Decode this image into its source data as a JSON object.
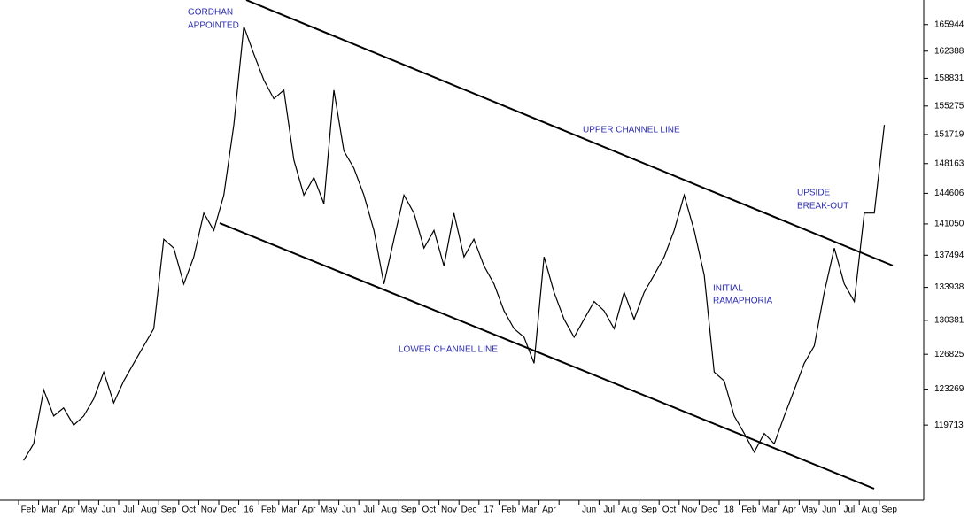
{
  "chart_data": {
    "type": "line",
    "log": true,
    "categories": [
      "Feb",
      null,
      "Mar",
      null,
      "Apr",
      null,
      "May",
      null,
      "Jun",
      null,
      "Jul",
      null,
      "Aug",
      null,
      "Sep",
      null,
      "Oct",
      null,
      "Nov",
      null,
      "Dec",
      null,
      "16",
      null,
      "Feb",
      null,
      "Mar",
      null,
      "Apr",
      null,
      "May",
      null,
      "Jun",
      null,
      "Jul",
      null,
      "Aug",
      null,
      "Sep",
      null,
      "Oct",
      null,
      "Nov",
      null,
      "Dec",
      null,
      "17",
      null,
      "Feb",
      null,
      "Mar",
      null,
      "Apr",
      null,
      null,
      null,
      "Jun",
      null,
      "Jul",
      null,
      "Aug",
      null,
      "Sep",
      null,
      "Oct",
      null,
      "Nov",
      null,
      "Dec",
      null,
      "18",
      null,
      "Feb",
      null,
      "Mar",
      null,
      "Apr",
      null,
      "May",
      null,
      "Jun",
      null,
      "Jul",
      null,
      "Aug",
      null,
      "Sep",
      null
    ],
    "series": [
      {
        "color": "#000000",
        "values": [
          116300,
          117900,
          123200,
          120600,
          121400,
          119700,
          120600,
          122300,
          125000,
          121900,
          124100,
          125900,
          127700,
          129500,
          139300,
          138300,
          134300,
          137300,
          142300,
          140300,
          144400,
          152900,
          165700,
          162000,
          158600,
          156200,
          157300,
          148600,
          144400,
          146500,
          143400,
          157300,
          149700,
          147600,
          144400,
          140300,
          134300,
          139300,
          144400,
          142300,
          138300,
          140300,
          136300,
          142300,
          137300,
          139300,
          136300,
          134300,
          131400,
          129500,
          128600,
          125900,
          137300,
          133400,
          130500,
          128600,
          130500,
          132400,
          131400,
          129500,
          133400,
          130500,
          133400,
          135300,
          137300,
          140300,
          144400,
          140300,
          135300,
          125000,
          124100,
          120600,
          118900,
          117100,
          118900,
          117900,
          120600,
          123200,
          125900,
          127700,
          133400,
          138300,
          134300,
          132400,
          142300,
          142300,
          152900,
          null
        ]
      }
    ],
    "ylim": [
      112600,
      169300
    ],
    "yticks": [
      119713,
      123269,
      126825,
      130381,
      133938,
      137494,
      141050,
      144606,
      148163,
      151719,
      155275,
      158831,
      162388,
      165944
    ],
    "annotations": [
      {
        "lines": [
          "GORDHAN",
          "APPOINTED"
        ]
      },
      {
        "lines": [
          "UPPER CHANNEL LINE"
        ]
      },
      {
        "lines": [
          "UPSIDE",
          "BREAK-OUT"
        ]
      },
      {
        "lines": [
          "INITIAL",
          "RAMAPHORIA"
        ]
      },
      {
        "lines": [
          "LOWER CHANNEL LINE"
        ]
      }
    ]
  }
}
